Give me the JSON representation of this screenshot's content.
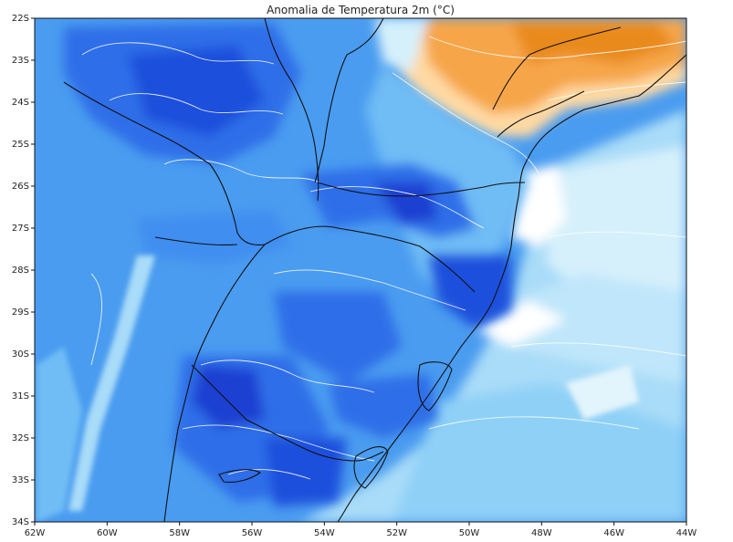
{
  "map": {
    "title": "Anomalia de Temperatura 2m (°C)",
    "lat_labels": [
      "22S",
      "23S",
      "24S",
      "25S",
      "26S",
      "27S",
      "28S",
      "29S",
      "30S",
      "31S",
      "32S",
      "33S",
      "34S"
    ],
    "lon_labels": [
      "62W",
      "60W",
      "58W",
      "56W",
      "54W",
      "52W",
      "50W",
      "48W",
      "46W",
      "44W"
    ],
    "colors": {
      "deep_blue": "#1f3fd1",
      "blue": "#2f6ee8",
      "mid_blue": "#3f8ef0",
      "light_blue": "#6fbcf5",
      "pale_blue": "#a9dcf8",
      "very_pale_blue": "#d6f0fb",
      "white": "#ffffff",
      "pale_orange": "#ffd9a3",
      "orange": "#f6a64a",
      "dark_orange": "#e98a1c",
      "border": "#111111",
      "contour": "#ffffff"
    }
  }
}
